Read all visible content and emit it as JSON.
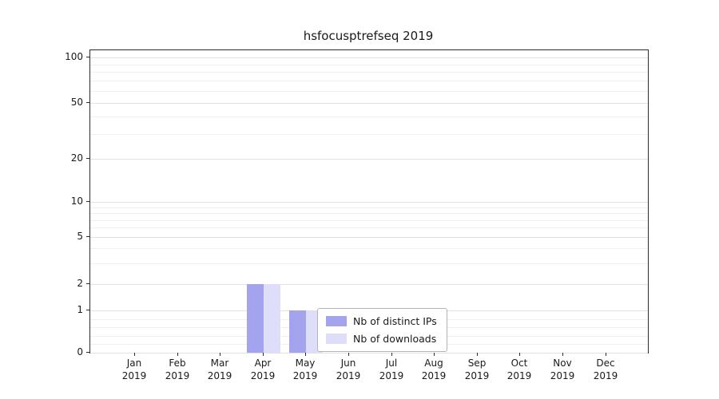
{
  "chart_data": {
    "type": "bar",
    "title": "hsfocusptrefseq 2019",
    "categories": [
      "Jan 2019",
      "Feb 2019",
      "Mar 2019",
      "Apr 2019",
      "May 2019",
      "Jun 2019",
      "Jul 2019",
      "Aug 2019",
      "Sep 2019",
      "Oct 2019",
      "Nov 2019",
      "Dec 2019"
    ],
    "series": [
      {
        "name": "Nb of distinct IPs",
        "color": "#a3a3ee",
        "values": [
          0,
          0,
          0,
          2,
          1,
          0,
          0,
          0,
          0,
          0,
          0,
          0
        ]
      },
      {
        "name": "Nb of downloads",
        "color": "#dedefb",
        "values": [
          0,
          0,
          0,
          2,
          1,
          0,
          0,
          0,
          0,
          0,
          0,
          0
        ]
      }
    ],
    "y_ticks": [
      0,
      1,
      2,
      5,
      10,
      20,
      50,
      100
    ],
    "y_scale": "symlog",
    "ylim": [
      0,
      100
    ],
    "grid": true,
    "legend": {
      "position": "lower-center",
      "entries": [
        "Nb of distinct IPs",
        "Nb of downloads"
      ]
    }
  }
}
